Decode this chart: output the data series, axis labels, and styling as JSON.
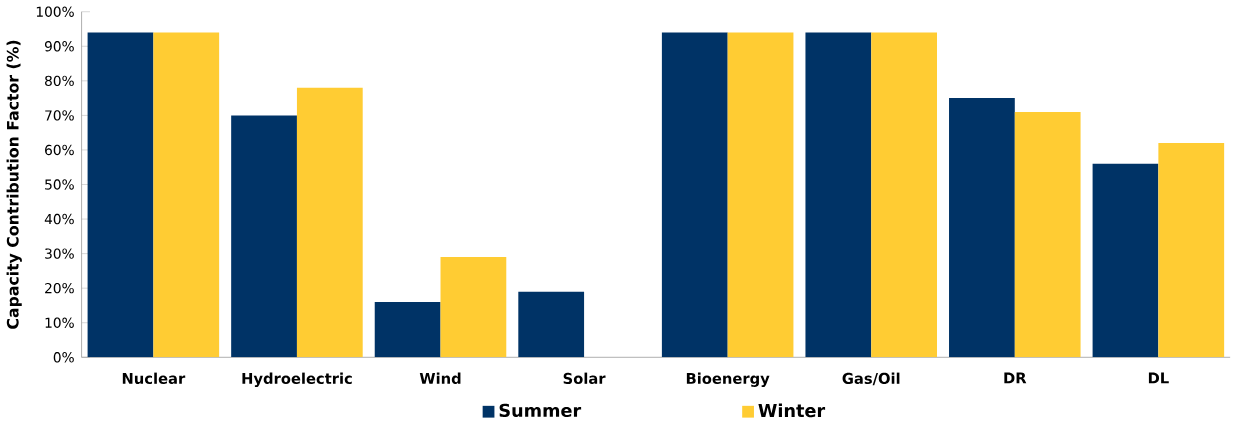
{
  "chart_data": {
    "type": "bar",
    "ylabel": "Capacity Contribution Factor (%)",
    "categories": [
      "Nuclear",
      "Hydroelectric",
      "Wind",
      "Solar",
      "Bioenergy",
      "Gas/Oil",
      "DR",
      "DL"
    ],
    "series": [
      {
        "name": "Summer",
        "color": "#003366",
        "values": [
          94,
          70,
          16,
          19,
          94,
          94,
          75,
          56
        ]
      },
      {
        "name": "Winter",
        "color": "#FFCC33",
        "values": [
          94,
          78,
          29,
          0,
          94,
          94,
          71,
          62
        ]
      }
    ],
    "ylim": [
      0,
      100
    ],
    "yticks": [
      {
        "value": 0,
        "label": "0%"
      },
      {
        "value": 10,
        "label": "10%"
      },
      {
        "value": 20,
        "label": "20%"
      },
      {
        "value": 30,
        "label": "30%"
      },
      {
        "value": 40,
        "label": "40%"
      },
      {
        "value": 50,
        "label": "50%"
      },
      {
        "value": 60,
        "label": "60%"
      },
      {
        "value": 70,
        "label": "70%"
      },
      {
        "value": 80,
        "label": "80%"
      },
      {
        "value": 90,
        "label": "90%"
      },
      {
        "value": 100,
        "label": "100%"
      }
    ],
    "legend": "bottom"
  }
}
